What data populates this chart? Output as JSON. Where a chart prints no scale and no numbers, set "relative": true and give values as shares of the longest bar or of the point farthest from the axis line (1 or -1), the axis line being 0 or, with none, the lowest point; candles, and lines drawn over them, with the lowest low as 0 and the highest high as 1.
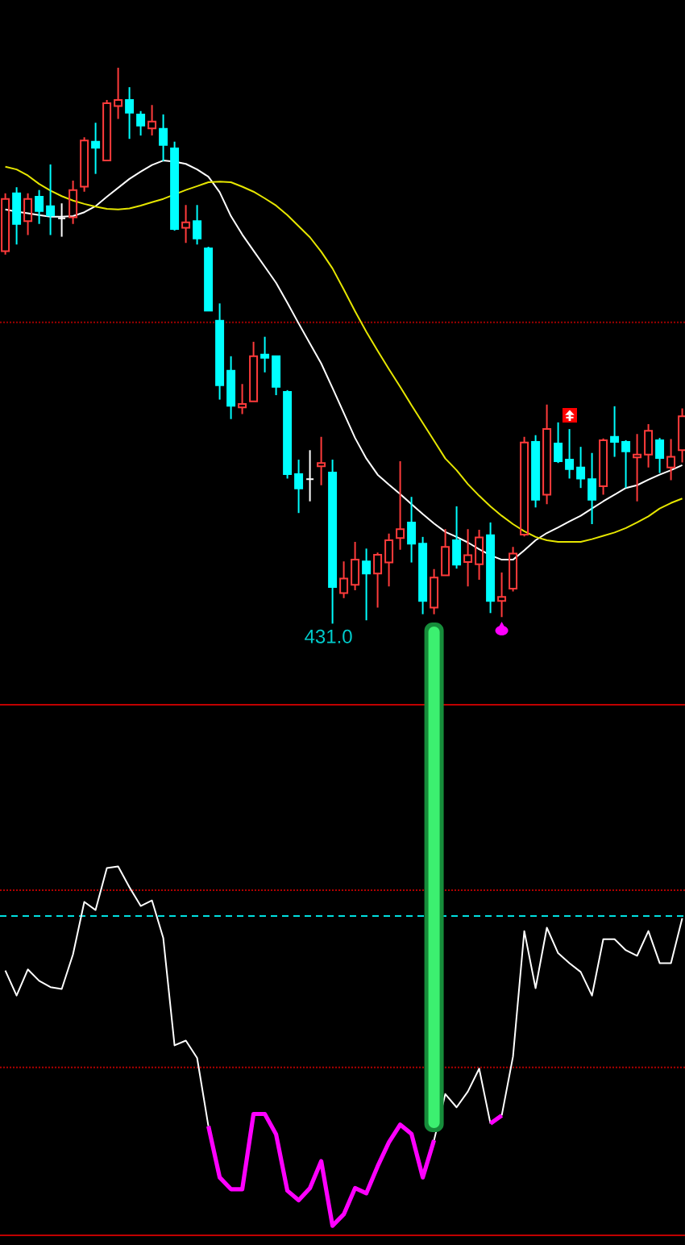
{
  "chart_data": [
    {
      "type": "candlestick",
      "relative": true,
      "tick_labels": false,
      "categories": [
        null,
        null,
        null,
        null,
        null,
        null,
        null,
        null,
        null,
        null,
        null,
        null,
        null,
        null,
        null,
        null,
        null,
        null,
        null,
        null,
        null,
        null,
        null,
        null,
        null,
        null,
        null,
        null,
        null,
        null,
        null,
        null,
        null,
        null,
        null,
        null,
        null,
        null,
        null,
        null,
        null,
        null,
        null,
        null,
        null,
        null,
        null,
        null,
        null,
        null,
        null,
        null,
        null,
        null,
        null,
        null,
        null,
        null,
        null,
        null,
        null
      ],
      "ohlc": [
        [
          0.67,
          0.774,
          0.664,
          0.764
        ],
        [
          0.774,
          0.785,
          0.682,
          0.719
        ],
        [
          0.724,
          0.774,
          0.699,
          0.764
        ],
        [
          0.768,
          0.78,
          0.719,
          0.742
        ],
        [
          0.751,
          0.826,
          0.699,
          0.734
        ],
        [
          0.729,
          0.756,
          0.696,
          0.729
        ],
        [
          0.731,
          0.797,
          0.719,
          0.78
        ],
        [
          0.786,
          0.875,
          0.777,
          0.869
        ],
        [
          0.867,
          0.901,
          0.809,
          0.856
        ],
        [
          0.833,
          0.942,
          0.833,
          0.936
        ],
        [
          0.931,
          1.0,
          0.908,
          0.942
        ],
        [
          0.942,
          0.965,
          0.872,
          0.919
        ],
        [
          0.916,
          0.922,
          0.878,
          0.896
        ],
        [
          0.891,
          0.933,
          0.878,
          0.903
        ],
        [
          0.89,
          0.916,
          0.832,
          0.861
        ],
        [
          0.855,
          0.867,
          0.707,
          0.71
        ],
        [
          0.712,
          0.753,
          0.685,
          0.722
        ],
        [
          0.724,
          0.753,
          0.682,
          0.693
        ],
        [
          0.675,
          0.678,
          0.563,
          0.563
        ],
        [
          0.545,
          0.576,
          0.403,
          0.429
        ],
        [
          0.455,
          0.481,
          0.368,
          0.392
        ],
        [
          0.389,
          0.431,
          0.377,
          0.395
        ],
        [
          0.4,
          0.507,
          0.4,
          0.481
        ],
        [
          0.484,
          0.516,
          0.452,
          0.478
        ],
        [
          0.481,
          0.481,
          0.411,
          0.426
        ],
        [
          0.417,
          0.42,
          0.261,
          0.269
        ],
        [
          0.269,
          0.295,
          0.199,
          0.243
        ],
        [
          0.26,
          0.312,
          0.22,
          0.26
        ],
        [
          0.283,
          0.336,
          0.249,
          0.289
        ],
        [
          0.272,
          0.295,
          0.0,
          0.066
        ],
        [
          0.055,
          0.112,
          0.046,
          0.081
        ],
        [
          0.07,
          0.147,
          0.06,
          0.115
        ],
        [
          0.112,
          0.135,
          0.006,
          0.09
        ],
        [
          0.09,
          0.128,
          0.029,
          0.124
        ],
        [
          0.11,
          0.162,
          0.067,
          0.15
        ],
        [
          0.154,
          0.292,
          0.133,
          0.17
        ],
        [
          0.182,
          0.228,
          0.11,
          0.144
        ],
        [
          0.144,
          0.156,
          0.017,
          0.041
        ],
        [
          0.029,
          0.098,
          0.017,
          0.083
        ],
        [
          0.087,
          0.17,
          0.087,
          0.138
        ],
        [
          0.15,
          0.211,
          0.099,
          0.106
        ],
        [
          0.111,
          0.17,
          0.067,
          0.123
        ],
        [
          0.107,
          0.169,
          0.079,
          0.155
        ],
        [
          0.159,
          0.182,
          0.019,
          0.041
        ],
        [
          0.041,
          0.092,
          0.012,
          0.048
        ],
        [
          0.063,
          0.138,
          0.058,
          0.126
        ],
        [
          0.16,
          0.336,
          0.157,
          0.326
        ],
        [
          0.327,
          0.339,
          0.209,
          0.223
        ],
        [
          0.232,
          0.394,
          0.215,
          0.35
        ],
        [
          0.324,
          0.362,
          0.289,
          0.292
        ],
        [
          0.295,
          0.35,
          0.261,
          0.278
        ],
        [
          0.281,
          0.318,
          0.244,
          0.261
        ],
        [
          0.26,
          0.307,
          0.179,
          0.223
        ],
        [
          0.247,
          0.333,
          0.232,
          0.33
        ],
        [
          0.336,
          0.391,
          0.3,
          0.327
        ],
        [
          0.327,
          0.33,
          0.244,
          0.31
        ],
        [
          0.299,
          0.341,
          0.22,
          0.304
        ],
        [
          0.304,
          0.359,
          0.281,
          0.347
        ],
        [
          0.33,
          0.334,
          0.271,
          0.298
        ],
        [
          0.281,
          0.332,
          0.258,
          0.3
        ],
        [
          0.312,
          0.387,
          0.29,
          0.373
        ]
      ],
      "colors": [
        "#ff3b3b",
        "#00ffff",
        "#ff3b3b",
        "#00ffff",
        "#00ffff",
        "#ffffff",
        "#ff3b3b",
        "#ff3b3b",
        "#00ffff",
        "#ff3b3b",
        "#ff3b3b",
        "#00ffff",
        "#00ffff",
        "#ff3b3b",
        "#00ffff",
        "#00ffff",
        "#ff3b3b",
        "#00ffff",
        "#00ffff",
        "#00ffff",
        "#00ffff",
        "#ff3b3b",
        "#ff3b3b",
        "#00ffff",
        "#00ffff",
        "#00ffff",
        "#00ffff",
        "#ffffff",
        "#ff3b3b",
        "#00ffff",
        "#ff3b3b",
        "#ff3b3b",
        "#00ffff",
        "#ff3b3b",
        "#ff3b3b",
        "#ff3b3b",
        "#00ffff",
        "#00ffff",
        "#ff3b3b",
        "#ff3b3b",
        "#00ffff",
        "#ff3b3b",
        "#ff3b3b",
        "#00ffff",
        "#ff3b3b",
        "#ff3b3b",
        "#ff3b3b",
        "#00ffff",
        "#ff3b3b",
        "#00ffff",
        "#00ffff",
        "#00ffff",
        "#00ffff",
        "#ff3b3b",
        "#00ffff",
        "#00ffff",
        "#ff3b3b",
        "#ff3b3b",
        "#00ffff",
        "#ff3b3b",
        "#ff3b3b"
      ],
      "series": [
        {
          "type": "line",
          "color": "#ffffff",
          "values": [
            0.745,
            0.741,
            0.738,
            0.735,
            0.732,
            0.732,
            0.733,
            0.74,
            0.751,
            0.768,
            0.784,
            0.8,
            0.813,
            0.825,
            0.833,
            0.831,
            0.827,
            0.817,
            0.804,
            0.776,
            0.733,
            0.7,
            0.671,
            0.642,
            0.613,
            0.577,
            0.54,
            0.504,
            0.468,
            0.424,
            0.379,
            0.334,
            0.297,
            0.268,
            0.25,
            0.233,
            0.215,
            0.197,
            0.18,
            0.165,
            0.156,
            0.146,
            0.134,
            0.123,
            0.115,
            0.115,
            0.132,
            0.15,
            0.163,
            0.173,
            0.184,
            0.194,
            0.207,
            0.22,
            0.232,
            0.244,
            0.249,
            0.259,
            0.268,
            0.276,
            0.285
          ]
        },
        {
          "type": "line",
          "color": "#e6e600",
          "values": [
            0.822,
            0.817,
            0.806,
            0.791,
            0.779,
            0.769,
            0.761,
            0.755,
            0.75,
            0.746,
            0.745,
            0.747,
            0.752,
            0.758,
            0.764,
            0.772,
            0.78,
            0.787,
            0.794,
            0.795,
            0.794,
            0.786,
            0.777,
            0.765,
            0.752,
            0.735,
            0.715,
            0.695,
            0.669,
            0.639,
            0.601,
            0.562,
            0.525,
            0.491,
            0.458,
            0.426,
            0.393,
            0.361,
            0.329,
            0.297,
            0.276,
            0.251,
            0.23,
            0.211,
            0.194,
            0.179,
            0.166,
            0.156,
            0.15,
            0.147,
            0.147,
            0.147,
            0.152,
            0.158,
            0.164,
            0.172,
            0.182,
            0.193,
            0.207,
            0.217,
            0.225
          ]
        }
      ],
      "ref_lines": [
        {
          "axis": "y",
          "value": 0.542,
          "color": "#a00000",
          "line_style": "dotted"
        }
      ],
      "annotations": [
        {
          "text": "431.0",
          "y": 0
        }
      ]
    },
    {
      "type": "line",
      "relative": true,
      "tick_labels": false,
      "categories": [
        null,
        null,
        null,
        null,
        null,
        null,
        null,
        null,
        null,
        null,
        null,
        null,
        null,
        null,
        null,
        null,
        null,
        null,
        null,
        null,
        null,
        null,
        null,
        null,
        null,
        null,
        null,
        null,
        null,
        null,
        null,
        null,
        null,
        null,
        null,
        null,
        null,
        null,
        null,
        null,
        null,
        null,
        null,
        null,
        null,
        null,
        null,
        null,
        null,
        null,
        null,
        null,
        null,
        null,
        null,
        null,
        null,
        null,
        null,
        null,
        null
      ],
      "series": [
        {
          "color": "#ffffff",
          "values": [
            0.718,
            0.65,
            0.721,
            0.69,
            0.673,
            0.668,
            0.762,
            0.904,
            0.882,
            0.996,
            1.0,
            0.944,
            0.893,
            0.908,
            0.806,
            0.515,
            0.528,
            0.481,
            0.296,
            null,
            null,
            null,
            null,
            null,
            null,
            null,
            null,
            null,
            null,
            null,
            null,
            null,
            null,
            null,
            null,
            null,
            null,
            null,
            0.258,
            0.383,
            0.347,
            0.39,
            0.452,
            0.303,
            null,
            null,
            null,
            null,
            null,
            null,
            null,
            null,
            null,
            null,
            null,
            null,
            null,
            null,
            null,
            null,
            null
          ]
        },
        {
          "color": "#ffffff",
          "values": [
            null,
            null,
            null,
            null,
            null,
            null,
            null,
            null,
            null,
            null,
            null,
            null,
            null,
            null,
            null,
            null,
            null,
            null,
            null,
            null,
            null,
            null,
            null,
            null,
            null,
            null,
            null,
            null,
            null,
            null,
            null,
            null,
            null,
            null,
            null,
            null,
            null,
            null,
            null,
            null,
            null,
            null,
            null,
            null,
            0.325,
            0.485,
            0.825,
            0.67,
            0.834,
            0.765,
            0.738,
            0.714,
            0.65,
            0.803,
            0.803,
            0.773,
            0.758,
            0.825,
            0.738,
            0.738,
            0.86
          ]
        },
        {
          "color": "#ff00ff",
          "values": [
            null,
            null,
            null,
            null,
            null,
            null,
            null,
            null,
            null,
            null,
            null,
            null,
            null,
            null,
            null,
            null,
            null,
            null,
            0.296,
            0.157,
            0.125,
            0.125,
            0.329,
            0.329,
            0.274,
            0.121,
            0.095,
            0.128,
            0.201,
            0.026,
            0.057,
            0.128,
            0.114,
            0.187,
            0.252,
            0.3,
            0.275,
            0.157,
            0.258,
            null,
            null,
            null,
            null,
            0.303,
            0.325,
            null,
            null,
            null,
            null,
            null,
            null,
            null,
            null,
            null,
            null,
            null,
            null,
            null,
            null,
            null,
            null
          ]
        }
      ],
      "ref_lines": [
        {
          "axis": "y",
          "value": 0.936,
          "color": "#b00000",
          "line_style": "dotted"
        },
        {
          "axis": "y",
          "value": 0.866,
          "color": "#00e0e0",
          "line_style": "dashed"
        },
        {
          "axis": "y",
          "value": 0.455,
          "color": "#b00000",
          "line_style": "dotted"
        }
      ]
    }
  ]
}
